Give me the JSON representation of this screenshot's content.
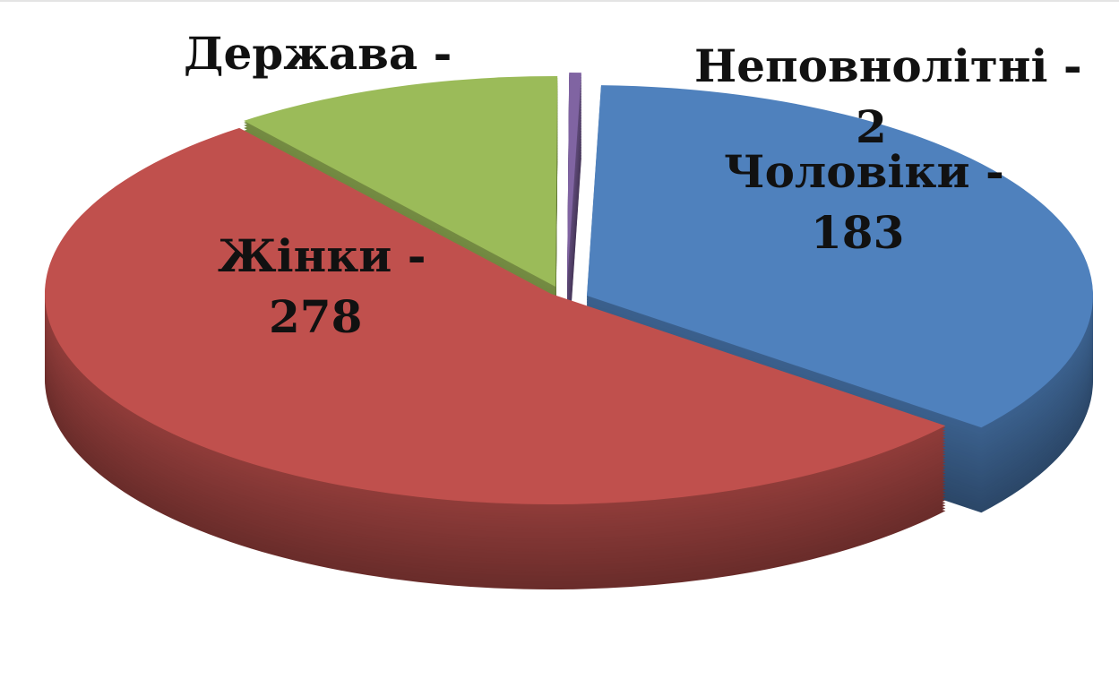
{
  "chart_data": {
    "type": "pie",
    "style": "3d",
    "title": "",
    "legend": "none",
    "slices": [
      {
        "label": "Держава -",
        "value": 55,
        "value_printed": false,
        "color": "#9bbb59"
      },
      {
        "label": "Неповнолітні - 2",
        "value": 2,
        "color": "#8064a2"
      },
      {
        "label": "Чоловіки - 183",
        "value": 183,
        "color": "#4f81bd"
      },
      {
        "label": "Жінки - 278",
        "value": 278,
        "color": "#c0504d"
      }
    ]
  },
  "labels": {
    "state": "Держава -",
    "minors": "Неповнолітні -",
    "minors_value": "2",
    "men": "Чоловіки -",
    "men_value": "183",
    "women": "Жінки -",
    "women_value": "278"
  }
}
